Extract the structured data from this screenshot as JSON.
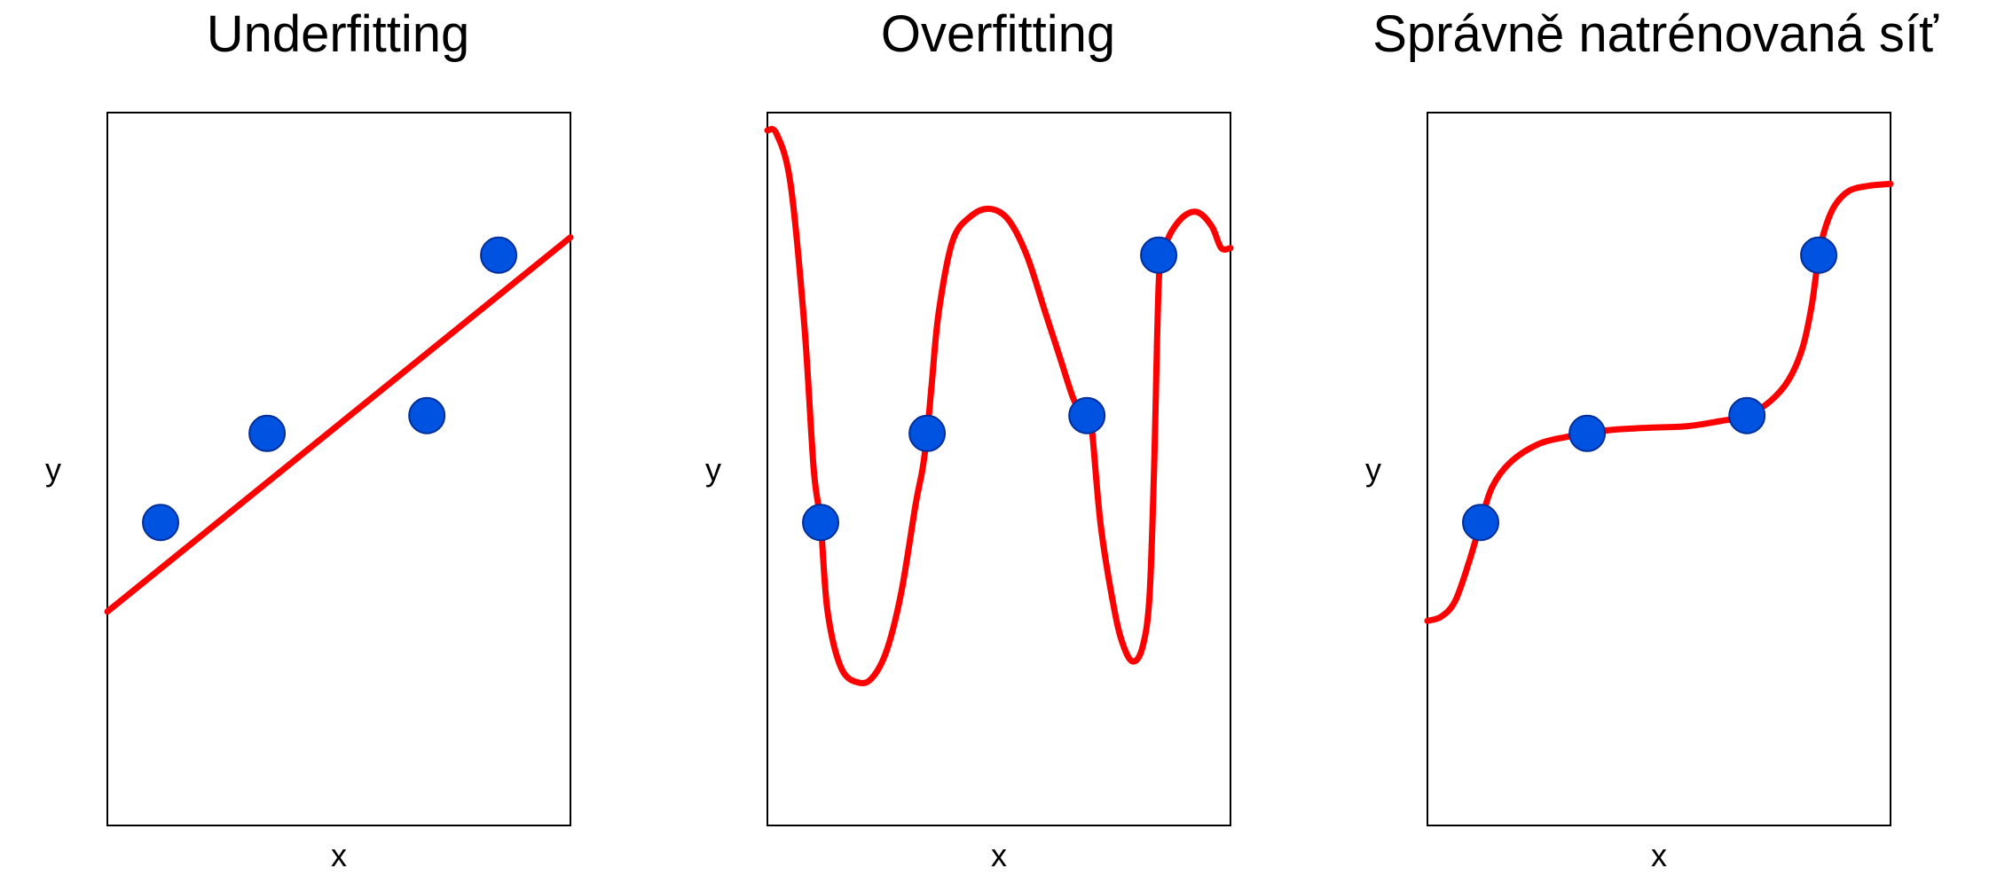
{
  "colors": {
    "curve": "#ff0000",
    "point_fill": "#0052e0",
    "point_stroke": "#002e9a",
    "frame": "#000000"
  },
  "chart_data": [
    {
      "type": "line",
      "title": "Underfitting",
      "xlabel": "x",
      "ylabel": "y",
      "xlim": [
        0,
        1
      ],
      "ylim": [
        0,
        1
      ],
      "grid": false,
      "ticks": false,
      "points": [
        {
          "x": 0.115,
          "y": 0.425
        },
        {
          "x": 0.345,
          "y": 0.55
        },
        {
          "x": 0.69,
          "y": 0.575
        },
        {
          "x": 0.845,
          "y": 0.8
        }
      ],
      "curve": {
        "x": [
          0,
          1
        ],
        "y": [
          0.3,
          0.825
        ]
      }
    },
    {
      "type": "line",
      "title": "Overfitting",
      "xlabel": "x",
      "ylabel": "y",
      "xlim": [
        0,
        1
      ],
      "ylim": [
        0,
        1
      ],
      "grid": false,
      "ticks": false,
      "points": [
        {
          "x": 0.115,
          "y": 0.425
        },
        {
          "x": 0.345,
          "y": 0.55
        },
        {
          "x": 0.69,
          "y": 0.575
        },
        {
          "x": 0.845,
          "y": 0.8
        }
      ],
      "curve": {
        "x": [
          0,
          0.02,
          0.05,
          0.08,
          0.1,
          0.115,
          0.13,
          0.16,
          0.2,
          0.23,
          0.26,
          0.29,
          0.32,
          0.335,
          0.345,
          0.355,
          0.37,
          0.4,
          0.44,
          0.48,
          0.52,
          0.56,
          0.6,
          0.63,
          0.66,
          0.675,
          0.69,
          0.7,
          0.72,
          0.75,
          0.77,
          0.79,
          0.81,
          0.825,
          0.835,
          0.845,
          0.855,
          0.87,
          0.9,
          0.93,
          0.96,
          0.98,
          1.0
        ],
        "y": [
          0.975,
          0.97,
          0.9,
          0.7,
          0.5,
          0.425,
          0.3,
          0.22,
          0.2,
          0.21,
          0.25,
          0.33,
          0.45,
          0.5,
          0.55,
          0.62,
          0.72,
          0.82,
          0.855,
          0.865,
          0.85,
          0.8,
          0.72,
          0.66,
          0.6,
          0.585,
          0.575,
          0.56,
          0.42,
          0.3,
          0.25,
          0.23,
          0.25,
          0.32,
          0.5,
          0.76,
          0.8,
          0.83,
          0.855,
          0.86,
          0.84,
          0.81,
          0.81
        ]
      }
    },
    {
      "type": "line",
      "title": "Správně natrénovaná síť",
      "xlabel": "x",
      "ylabel": "y",
      "xlim": [
        0,
        1
      ],
      "ylim": [
        0,
        1
      ],
      "grid": false,
      "ticks": false,
      "points": [
        {
          "x": 0.115,
          "y": 0.425
        },
        {
          "x": 0.345,
          "y": 0.55
        },
        {
          "x": 0.69,
          "y": 0.575
        },
        {
          "x": 0.845,
          "y": 0.8
        }
      ],
      "curve": {
        "x": [
          0,
          0.03,
          0.06,
          0.09,
          0.115,
          0.14,
          0.18,
          0.24,
          0.3,
          0.345,
          0.4,
          0.48,
          0.56,
          0.63,
          0.69,
          0.74,
          0.78,
          0.81,
          0.83,
          0.845,
          0.86,
          0.88,
          0.91,
          0.95,
          1.0
        ],
        "y": [
          0.287,
          0.293,
          0.315,
          0.37,
          0.425,
          0.475,
          0.51,
          0.535,
          0.545,
          0.55,
          0.555,
          0.558,
          0.56,
          0.567,
          0.575,
          0.595,
          0.625,
          0.67,
          0.73,
          0.8,
          0.84,
          0.87,
          0.89,
          0.897,
          0.9
        ]
      }
    }
  ]
}
